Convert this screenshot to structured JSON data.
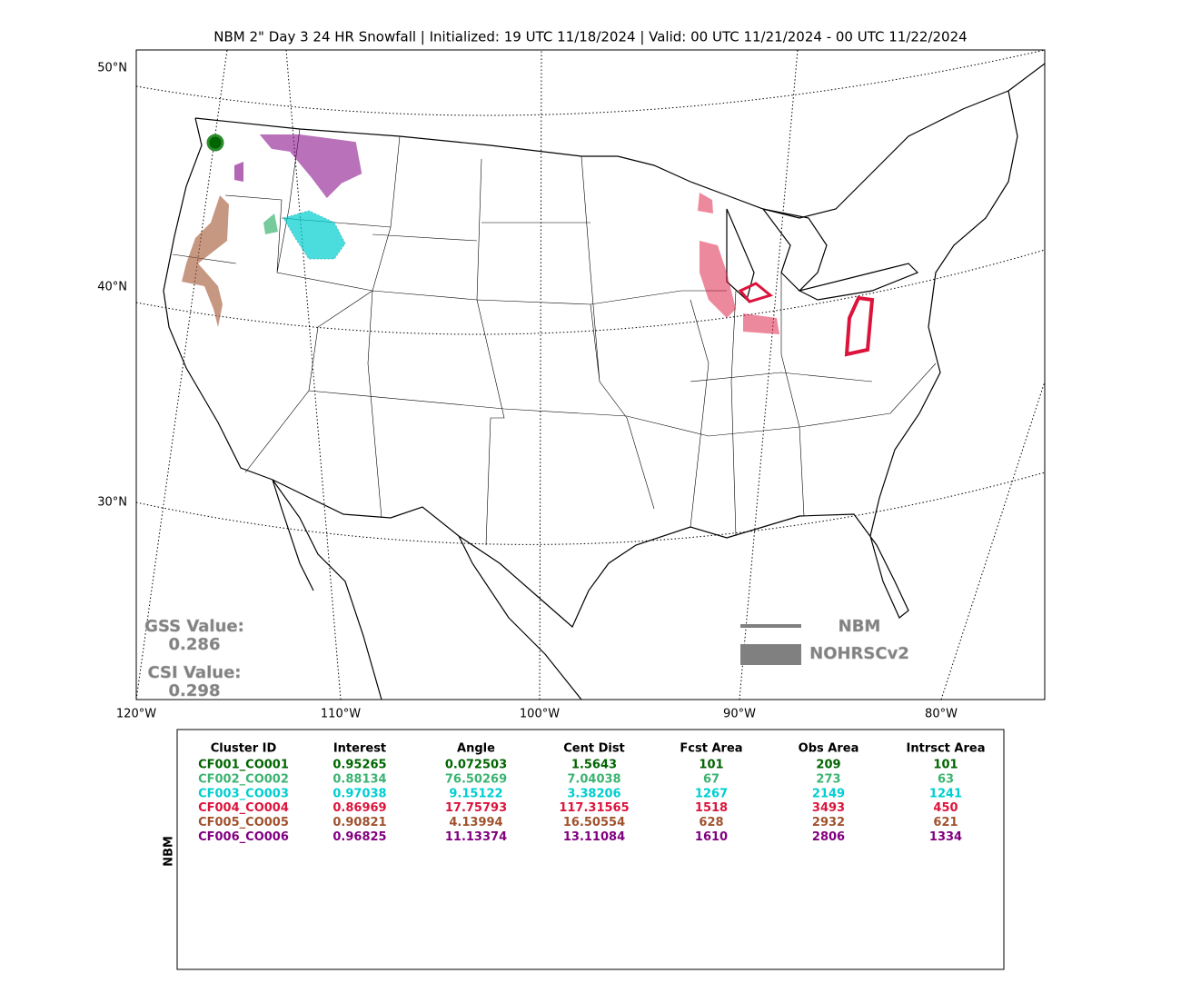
{
  "title": "NBM 2\" Day 3 24 HR Snowfall | Initialized: 19 UTC 11/18/2024 | Valid: 00 UTC 11/21/2024 - 00 UTC 11/22/2024",
  "map": {
    "lat_labels": [
      "50°N",
      "40°N",
      "30°N"
    ],
    "lon_labels": [
      "120°W",
      "110°W",
      "100°W",
      "90°W",
      "80°W"
    ],
    "gss_label": "GSS Value:",
    "gss_value": "0.286",
    "csi_label": "CSI Value:",
    "csi_value": "0.298",
    "legend": [
      "NBM",
      "NOHRSCv2"
    ]
  },
  "table": {
    "side_label": "NBM",
    "columns": [
      "Cluster ID",
      "Interest",
      "Angle",
      "Cent Dist",
      "Fcst Area",
      "Obs Area",
      "Intrsct Area"
    ],
    "row_colors": [
      "#006400",
      "#3cb371",
      "#00ced1",
      "#dc143c",
      "#a0522d",
      "#800080"
    ],
    "rows": [
      [
        "CF001_CO001",
        "0.95265",
        "0.072503",
        "1.5643",
        "101",
        "209",
        "101"
      ],
      [
        "CF002_CO002",
        "0.88134",
        "76.50269",
        "7.04038",
        "67",
        "273",
        "63"
      ],
      [
        "CF003_CO003",
        "0.97038",
        "9.15122",
        "3.38206",
        "1267",
        "2149",
        "1241"
      ],
      [
        "CF004_CO004",
        "0.86969",
        "17.75793",
        "117.31565",
        "1518",
        "3493",
        "450"
      ],
      [
        "CF005_CO005",
        "0.90821",
        "4.13994",
        "16.50554",
        "628",
        "2932",
        "621"
      ],
      [
        "CF006_CO006",
        "0.96825",
        "11.13374",
        "13.11084",
        "1610",
        "2806",
        "1334"
      ]
    ]
  }
}
